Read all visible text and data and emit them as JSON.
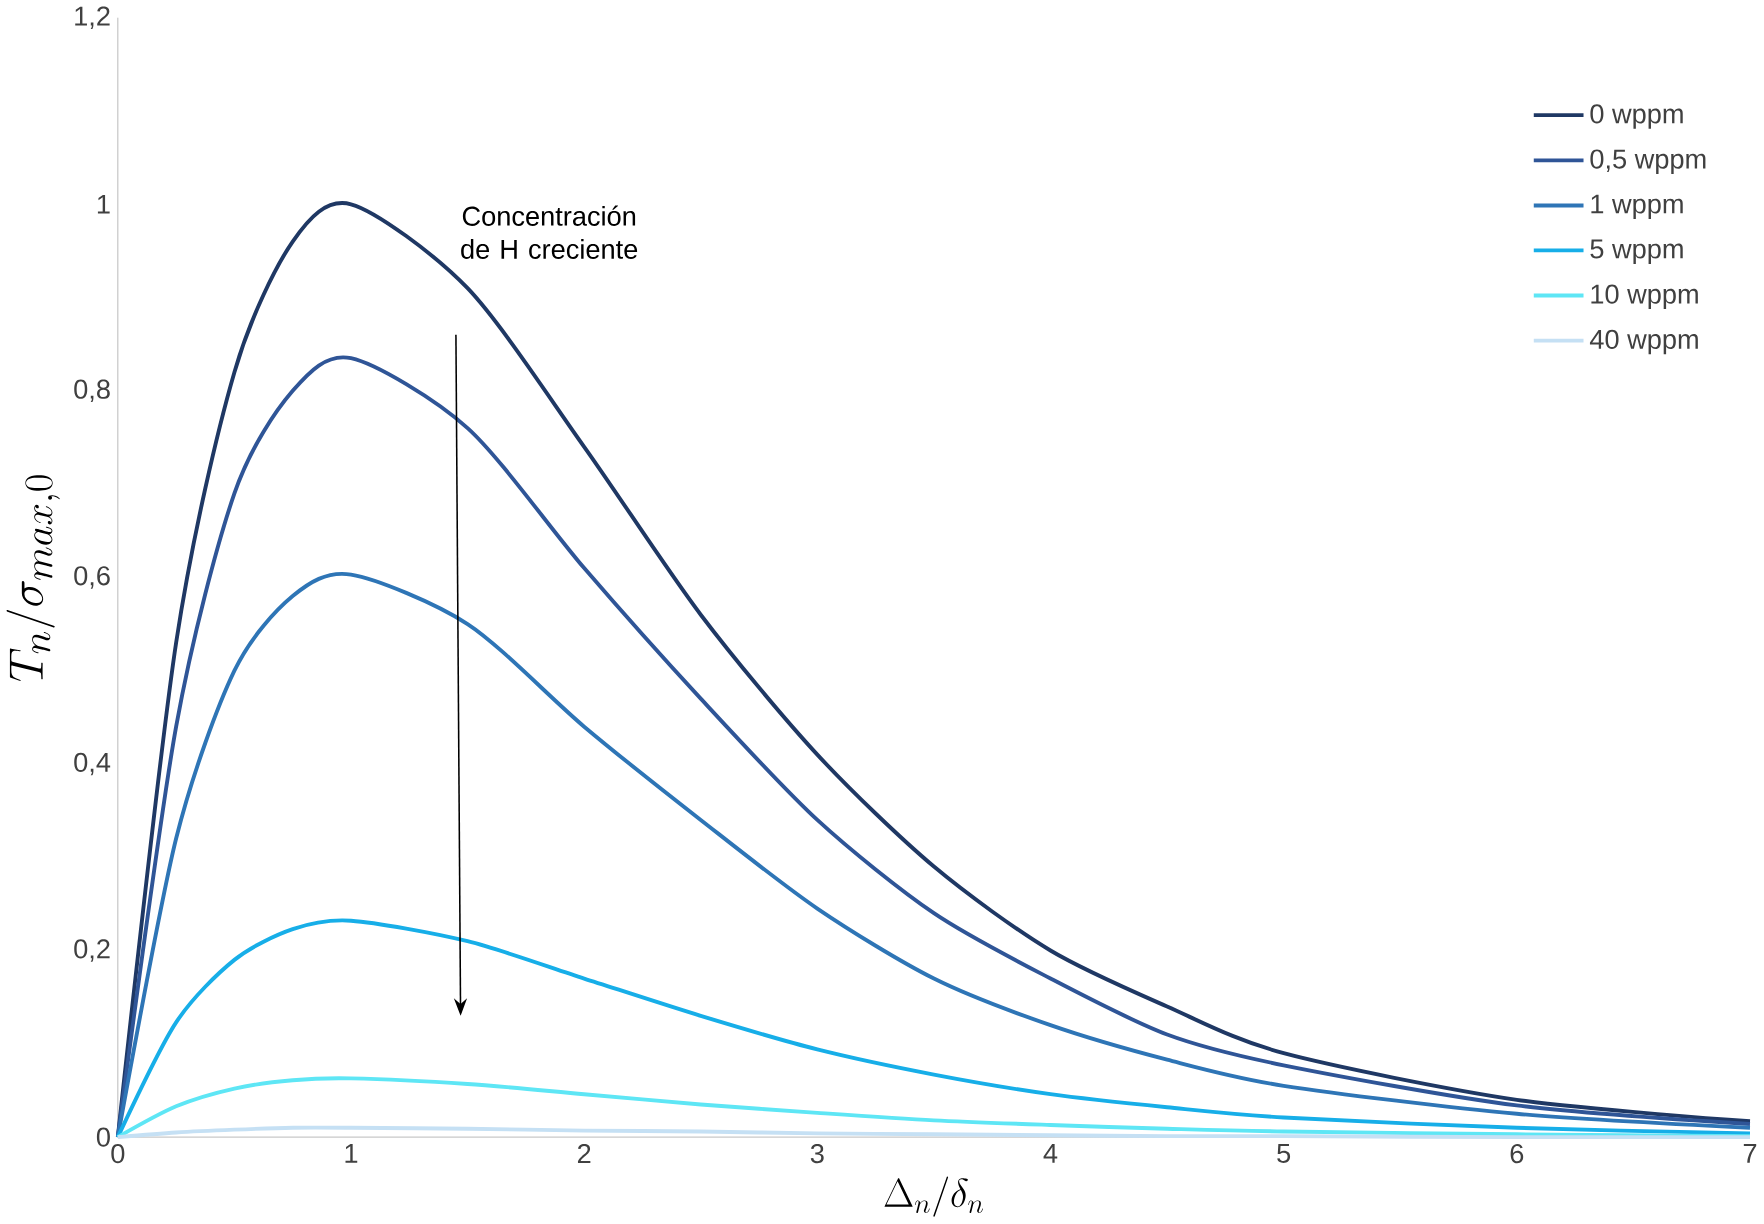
{
  "chart_data": {
    "type": "line",
    "xlabel": "\\Delta_n/\\delta_n",
    "ylabel": "T_n/\\sigma_{max,0}",
    "annotations": [
      "Concentración de H creciente"
    ],
    "x": [
      0,
      0.25,
      0.5,
      0.75,
      1,
      1.5,
      2,
      2.5,
      3,
      3.5,
      4,
      4.5,
      5,
      6,
      7
    ],
    "series": [
      {
        "name": "0 wppm",
        "color": "#1f3864",
        "values": [
          0,
          0.53,
          0.82,
          0.96,
          1.0,
          0.91,
          0.74,
          0.56,
          0.41,
          0.29,
          0.2,
          0.14,
          0.09,
          0.04,
          0.017
        ]
      },
      {
        "name": "0,5 wppm",
        "color": "#2f5597",
        "values": [
          0,
          0.44,
          0.69,
          0.8,
          0.835,
          0.76,
          0.61,
          0.47,
          0.34,
          0.24,
          0.17,
          0.11,
          0.077,
          0.034,
          0.014
        ]
      },
      {
        "name": "1 wppm",
        "color": "#2e75b6",
        "values": [
          0,
          0.32,
          0.5,
          0.58,
          0.603,
          0.55,
          0.44,
          0.34,
          0.245,
          0.17,
          0.12,
          0.083,
          0.055,
          0.025,
          0.01
        ]
      },
      {
        "name": "5 wppm",
        "color": "#17aee8",
        "values": [
          0,
          0.123,
          0.19,
          0.223,
          0.232,
          0.21,
          0.17,
          0.13,
          0.094,
          0.067,
          0.046,
          0.032,
          0.021,
          0.01,
          0.004
        ]
      },
      {
        "name": "10 wppm",
        "color": "#5ee6f5",
        "values": [
          0,
          0.033,
          0.052,
          0.061,
          0.063,
          0.057,
          0.046,
          0.035,
          0.026,
          0.018,
          0.013,
          0.009,
          0.006,
          0.003,
          0.001
        ]
      },
      {
        "name": "40 wppm",
        "color": "#c5e0f4",
        "values": [
          0,
          0.005,
          0.008,
          0.01,
          0.01,
          0.009,
          0.007,
          0.006,
          0.004,
          0.003,
          0.002,
          0.001,
          0.001,
          0,
          0
        ]
      }
    ],
    "xlim": [
      0,
      7
    ],
    "ylim": [
      0,
      1.2
    ],
    "xticks": [
      0,
      1,
      2,
      3,
      4,
      5,
      6,
      7
    ],
    "yticks": [
      0,
      {
        "value": 0.2,
        "label": "0,2"
      },
      {
        "value": 0.4,
        "label": "0,4"
      },
      {
        "value": 0.6,
        "label": "0,6"
      },
      {
        "value": 0.8,
        "label": "0,8"
      },
      1,
      {
        "value": 1.2,
        "label": "1,2"
      }
    ],
    "legend": "top right",
    "grid": false,
    "marker": "none",
    "line_style": "solid"
  }
}
